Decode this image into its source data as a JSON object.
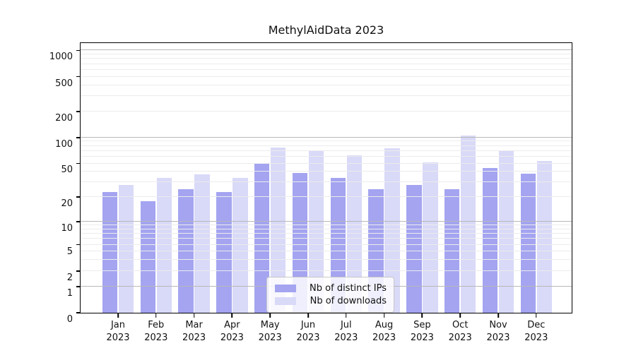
{
  "title": "MethylAidData 2023",
  "chart_data": {
    "type": "bar",
    "title": "MethylAidData 2023",
    "scale": "log1p",
    "year": "2023",
    "categories": [
      "Jan",
      "Feb",
      "Mar",
      "Apr",
      "May",
      "Jun",
      "Jul",
      "Aug",
      "Sep",
      "Oct",
      "Nov",
      "Dec"
    ],
    "series": [
      {
        "name": "Nb of distinct IPs",
        "color": "#a4a4f1",
        "values": [
          23,
          18,
          25,
          23,
          50,
          39,
          34,
          25,
          28,
          25,
          44,
          38
        ]
      },
      {
        "name": "Nb of downloads",
        "color": "#d9d9f8",
        "values": [
          28,
          34,
          37,
          34,
          77,
          69,
          62,
          75,
          51,
          105,
          71,
          53
        ]
      }
    ],
    "xlabel": "",
    "ylabel": "",
    "ylim": [
      0,
      1259
    ],
    "yticks": [
      0,
      1,
      2,
      5,
      10,
      20,
      50,
      100,
      200,
      500,
      1000
    ],
    "grid_major": [
      1,
      10,
      100,
      1000
    ],
    "grid_minor": [
      2,
      3,
      4,
      5,
      6,
      7,
      8,
      9,
      20,
      30,
      40,
      50,
      60,
      70,
      80,
      90,
      200,
      300,
      400,
      500,
      600,
      700,
      800,
      900
    ],
    "grid": "on",
    "legend_position": "bottom-center",
    "colors": {
      "bar_dark": "#a4a4f1",
      "bar_light": "#d9d9f8",
      "grid_major": "#b8b8b8",
      "grid_minor": "#ececec",
      "spine": "#000000",
      "legend_border": "#c8c8c8"
    }
  }
}
